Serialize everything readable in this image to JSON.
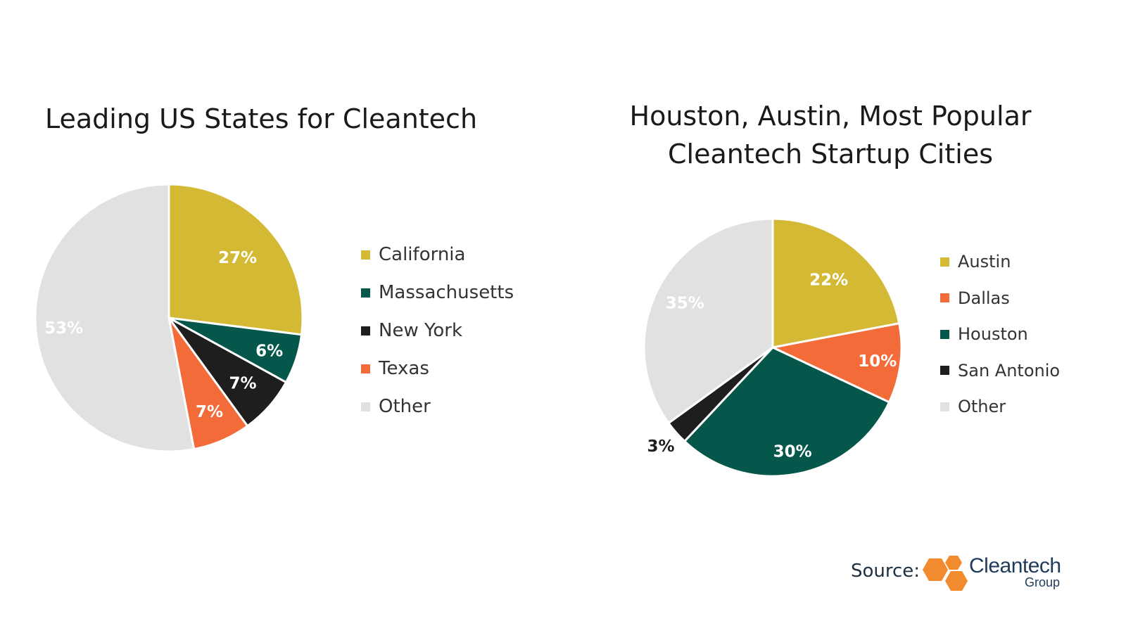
{
  "chart_data": [
    {
      "type": "pie",
      "title": "Leading US States for Cleantech",
      "categories": [
        "California",
        "Massachusetts",
        "New York",
        "Texas",
        "Other"
      ],
      "values": [
        27,
        6,
        7,
        7,
        53
      ],
      "labels": [
        "27%",
        "6%",
        "7%",
        "7%",
        "53%"
      ],
      "colors": [
        "#d4b935",
        "#04574a",
        "#1e1e1e",
        "#f26b38",
        "#e1e1e1"
      ],
      "label_colors": [
        "#ffffff",
        "#ffffff",
        "#ffffff",
        "#ffffff",
        "#ffffff"
      ],
      "legend_position": "right"
    },
    {
      "type": "pie",
      "title": [
        "Houston, Austin, Most Popular",
        "Cleantech Startup Cities"
      ],
      "categories": [
        "Austin",
        "Dallas",
        "Houston",
        "San Antonio",
        "Other"
      ],
      "values": [
        22,
        10,
        30,
        3,
        35
      ],
      "labels": [
        "22%",
        "10%",
        "30%",
        "3%",
        "35%"
      ],
      "slice_order": [
        "Austin",
        "Dallas",
        "Houston",
        "San Antonio",
        "Other"
      ],
      "colors": [
        "#d4b935",
        "#f26b38",
        "#04574a",
        "#1e1e1e",
        "#e1e1e1"
      ],
      "label_colors": [
        "#ffffff",
        "#ffffff",
        "#ffffff",
        "#1e1e1e",
        "#ffffff"
      ],
      "legend_position": "right"
    }
  ],
  "footer": {
    "source_label": "Source:",
    "logo_text": "Cleantech",
    "logo_subtext": "Group",
    "logo_color": "#f28a2e"
  }
}
